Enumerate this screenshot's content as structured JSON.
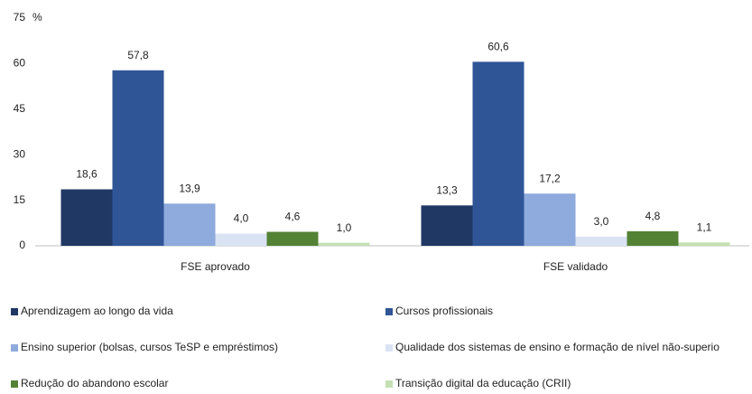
{
  "chart_data": {
    "type": "bar",
    "y_unit": "%",
    "categories": [
      "FSE aprovado",
      "FSE validado"
    ],
    "series": [
      {
        "name": "Aprendizagem ao longo da vida",
        "color": "#203864",
        "values": [
          18.6,
          13.3
        ],
        "value_labels": [
          "18,6",
          "13,3"
        ]
      },
      {
        "name": "Cursos profissionais",
        "color": "#2f5597",
        "values": [
          57.8,
          60.6
        ],
        "value_labels": [
          "57,8",
          "60,6"
        ]
      },
      {
        "name": "Ensino superior (bolsas, cursos TeSP e empréstimos)",
        "color": "#8faadc",
        "values": [
          13.9,
          17.2
        ],
        "value_labels": [
          "13,9",
          "17,2"
        ]
      },
      {
        "name": "Qualidade dos sistemas de ensino e formação de nível não-superio",
        "color": "#dae3f3",
        "values": [
          4.0,
          3.0
        ],
        "value_labels": [
          "4,0",
          "3,0"
        ]
      },
      {
        "name": "Redução do abandono escolar",
        "color": "#548235",
        "values": [
          4.6,
          4.8
        ],
        "value_labels": [
          "4,6",
          "4,8"
        ]
      },
      {
        "name": "Transição digital da educação (CRII)",
        "color": "#c5e0b4",
        "values": [
          1.0,
          1.1
        ],
        "value_labels": [
          "1,0",
          "1,1"
        ]
      }
    ],
    "ylim": [
      0,
      75
    ],
    "yticks": [
      0,
      15,
      30,
      45,
      60,
      75
    ],
    "grid": false,
    "legend": "bottom"
  }
}
